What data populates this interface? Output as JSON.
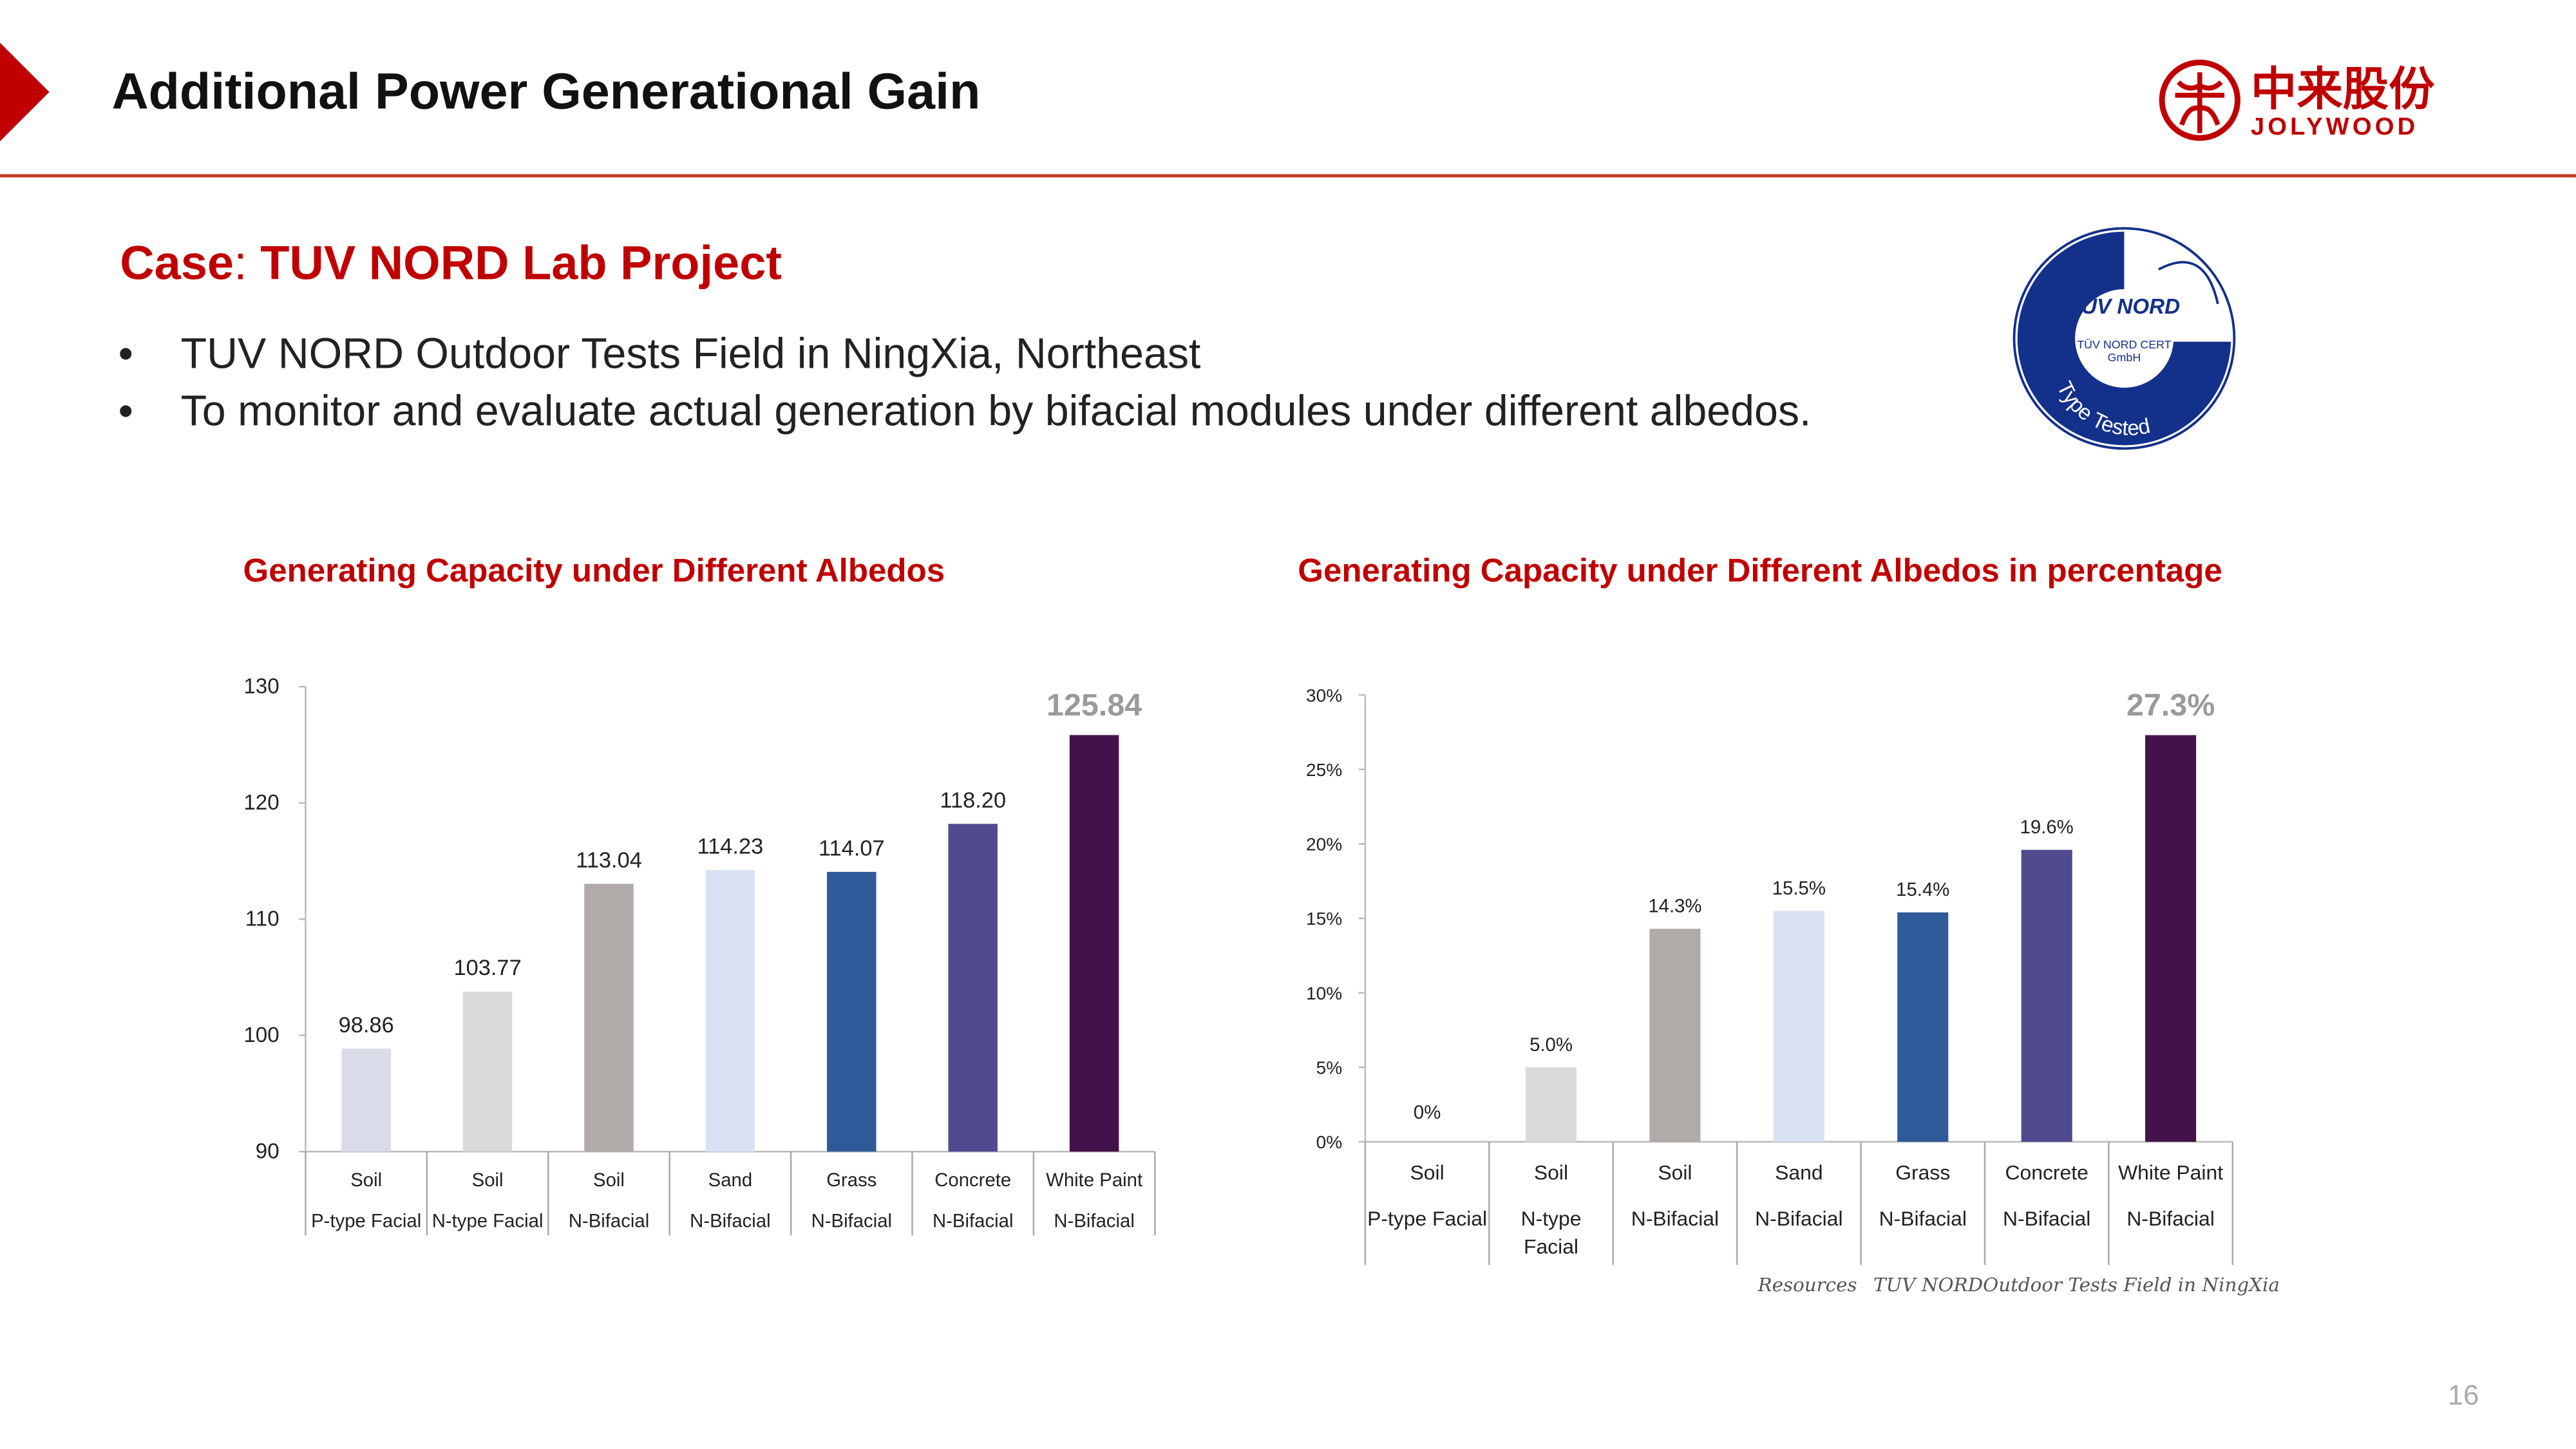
{
  "header": {
    "title": "Additional Power Generational Gain",
    "logo_cn": "中来股份",
    "logo_en": "JOLYWOOD"
  },
  "case": {
    "prefix": "Case",
    "sep": ": ",
    "name": "TUV NORD Lab Project"
  },
  "bullets": [
    "TUV NORD Outdoor Tests Field in NingXia, Northeast",
    "To monitor and evaluate actual generation by bifacial modules under different albedos."
  ],
  "badge": {
    "brand": "TÜV NORD",
    "line1": "TÜV NORD CERT",
    "line2": "GmbH",
    "ring": "Type Tested",
    "color": "#13308a"
  },
  "source": {
    "label": "Resources",
    "text": "TUV NORDOutdoor Tests Field in NingXia"
  },
  "page_number": "16",
  "chart_data": [
    {
      "type": "bar",
      "title": "Generating Capacity under Different Albedos",
      "categories": [
        [
          "Soil",
          "P-type Facial"
        ],
        [
          "Soil",
          "N-type Facial"
        ],
        [
          "Soil",
          "N-Bifacial"
        ],
        [
          "Sand",
          "N-Bifacial"
        ],
        [
          "Grass",
          "N-Bifacial"
        ],
        [
          "Concrete",
          "N-Bifacial"
        ],
        [
          "White Paint",
          "N-Bifacial"
        ]
      ],
      "values": [
        98.86,
        103.77,
        113.04,
        114.23,
        114.07,
        118.2,
        125.84
      ],
      "labels": [
        "98.86",
        "103.77",
        "113.04",
        "114.23",
        "114.07",
        "118.20",
        "125.84"
      ],
      "ylim": [
        90,
        130
      ],
      "yticks": [
        90,
        100,
        110,
        120,
        130
      ],
      "ytick_labels": [
        "90",
        "100",
        "110",
        "120",
        "130"
      ],
      "colors": [
        "#d9dbe8",
        "#dadada",
        "#b0aba9",
        "#dae1f2",
        "#2f5b9b",
        "#504b8e",
        "#44124a"
      ]
    },
    {
      "type": "bar",
      "title": "Generating Capacity under Different Albedos in percentage",
      "categories": [
        [
          "Soil",
          "P-type Facial"
        ],
        [
          "Soil",
          "N-type",
          "Facial"
        ],
        [
          "Soil",
          "N-Bifacial"
        ],
        [
          "Sand",
          "N-Bifacial"
        ],
        [
          "Grass",
          "N-Bifacial"
        ],
        [
          "Concrete",
          "N-Bifacial"
        ],
        [
          "White Paint",
          "N-Bifacial"
        ]
      ],
      "values": [
        0,
        5.0,
        14.3,
        15.5,
        15.4,
        19.6,
        27.3
      ],
      "labels": [
        "0%",
        "5.0%",
        "14.3%",
        "15.5%",
        "15.4%",
        "19.6%",
        "27.3%"
      ],
      "ylim": [
        0,
        30
      ],
      "yticks": [
        0,
        5,
        10,
        15,
        20,
        25,
        30
      ],
      "ytick_labels": [
        "0%",
        "5%",
        "10%",
        "15%",
        "20%",
        "25%",
        "30%"
      ],
      "colors": [
        "#d9dbe8",
        "#dadada",
        "#b0aba9",
        "#dae1f2",
        "#2f5b9b",
        "#504b8e",
        "#44124a"
      ]
    }
  ]
}
